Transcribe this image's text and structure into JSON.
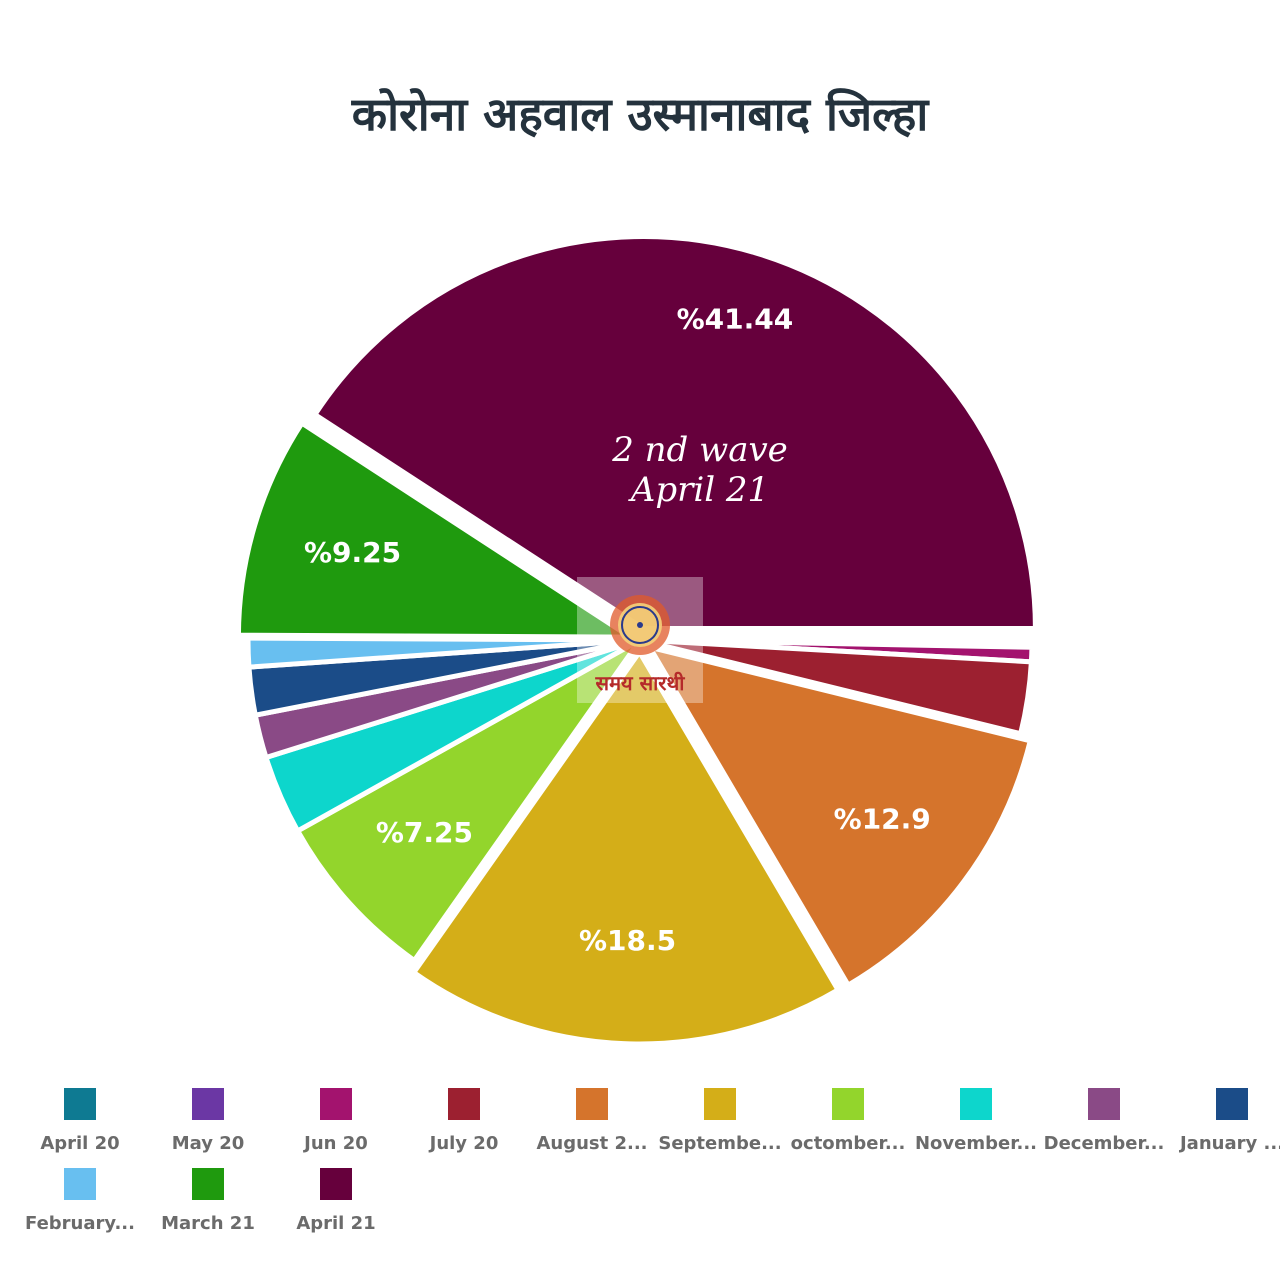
{
  "title": "कोरोना अहवाल उस्मानाबाद जिल्हा",
  "annotation": {
    "line1": "2 nd wave",
    "line2": "April 21"
  },
  "logo_text": "समय सारथी",
  "chart_data": {
    "type": "pie",
    "title": "कोरोना अहवाल उस्मानाबाद जिल्हा",
    "legend_position": "bottom",
    "slices": [
      {
        "label": "April 20",
        "value": 0.15,
        "color": "#0e7a92",
        "data_label": ""
      },
      {
        "label": "May 20",
        "value": 0.15,
        "color": "#6b37a4",
        "data_label": ""
      },
      {
        "label": "Jun 20",
        "value": 0.6,
        "color": "#a3136e",
        "data_label": ""
      },
      {
        "label": "July 20",
        "value": 3.0,
        "color": "#9c2030",
        "data_label": ""
      },
      {
        "label": "August 2...",
        "value": 12.9,
        "color": "#d5742c",
        "data_label": "%12.9"
      },
      {
        "label": "Septembe...",
        "value": 18.5,
        "color": "#d4ae18",
        "data_label": "%18.5"
      },
      {
        "label": "octomber...",
        "value": 7.25,
        "color": "#93d52c",
        "data_label": "%7.25"
      },
      {
        "label": "November...",
        "value": 3.3,
        "color": "#0dd6cc",
        "data_label": ""
      },
      {
        "label": "December...",
        "value": 1.8,
        "color": "#8a4a86",
        "data_label": ""
      },
      {
        "label": "January ...",
        "value": 2.0,
        "color": "#1b4c88",
        "data_label": ""
      },
      {
        "label": "February...",
        "value": 1.2,
        "color": "#68bff0",
        "data_label": ""
      },
      {
        "label": "March 21",
        "value": 9.25,
        "color": "#1f9a0e",
        "data_label": "%9.25"
      },
      {
        "label": "April 21",
        "value": 41.44,
        "color": "#66003c",
        "data_label": "%41.44"
      }
    ]
  }
}
